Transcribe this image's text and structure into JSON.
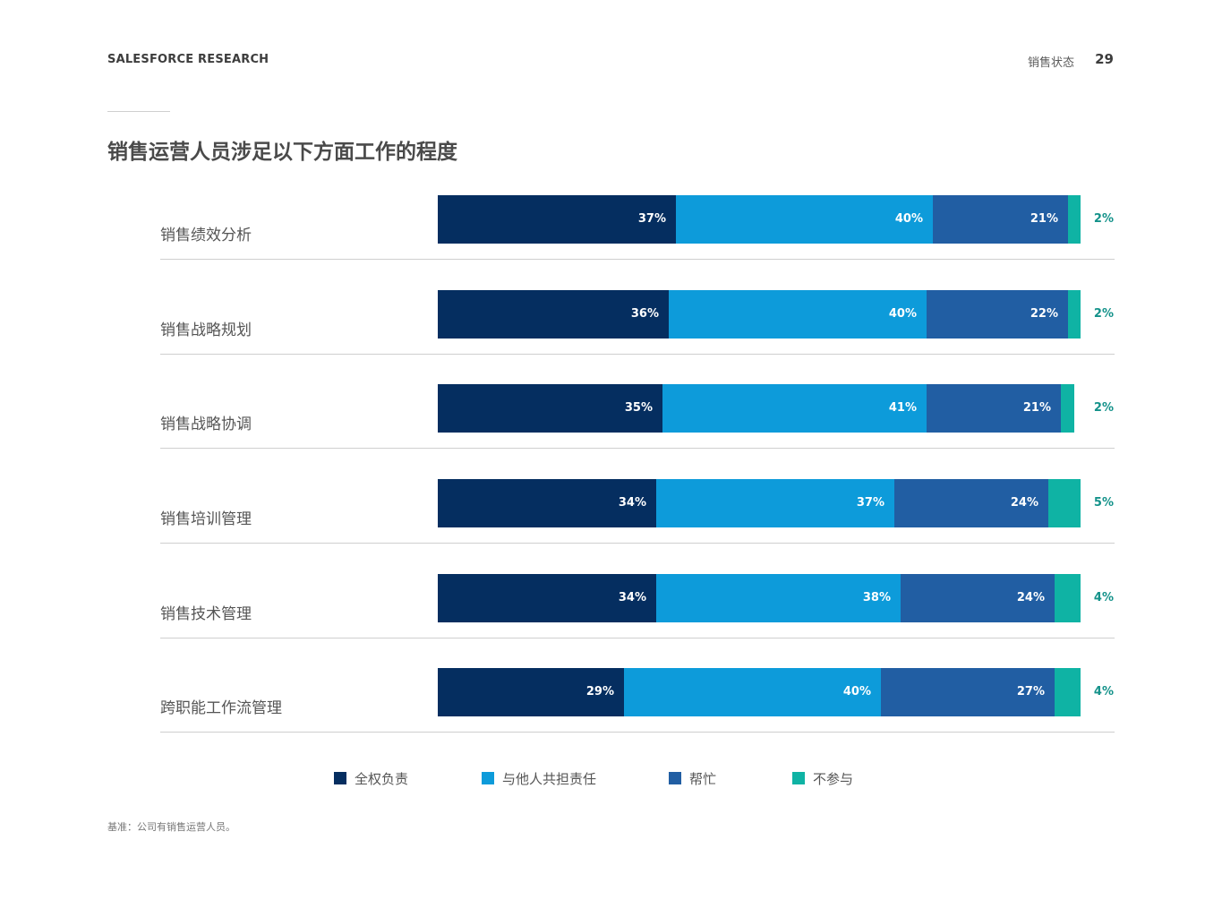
{
  "header": {
    "brand": "SALESFORCE RESEARCH",
    "section": "销售状态",
    "page": "29"
  },
  "title": "销售运营人员涉足以下方面工作的程度",
  "footnote": "基准：公司有销售运营人员。",
  "colors": {
    "全权负责": "#052e60",
    "与他人共担责任": "#0d9bda",
    "帮忙": "#215ea3",
    "不参与": "#0fb3a4",
    "outside_label": "#14928a"
  },
  "legend": [
    "全权负责",
    "与他人共担责任",
    "帮忙",
    "不参与"
  ],
  "chart_data": {
    "type": "bar",
    "orientation": "horizontal",
    "stacked": true,
    "unit": "%",
    "categories": [
      "销售绩效分析",
      "销售战略规划",
      "销售战略协调",
      "销售培训管理",
      "销售技术管理",
      "跨职能工作流管理"
    ],
    "series": [
      {
        "name": "全权负责",
        "values": [
          37,
          36,
          35,
          34,
          34,
          29
        ]
      },
      {
        "name": "与他人共担责任",
        "values": [
          40,
          40,
          41,
          37,
          38,
          40
        ]
      },
      {
        "name": "帮忙",
        "values": [
          21,
          22,
          21,
          24,
          24,
          27
        ]
      },
      {
        "name": "不参与",
        "values": [
          2,
          2,
          2,
          5,
          4,
          4
        ]
      }
    ],
    "xlim": [
      0,
      100
    ],
    "legend_position": "bottom"
  }
}
